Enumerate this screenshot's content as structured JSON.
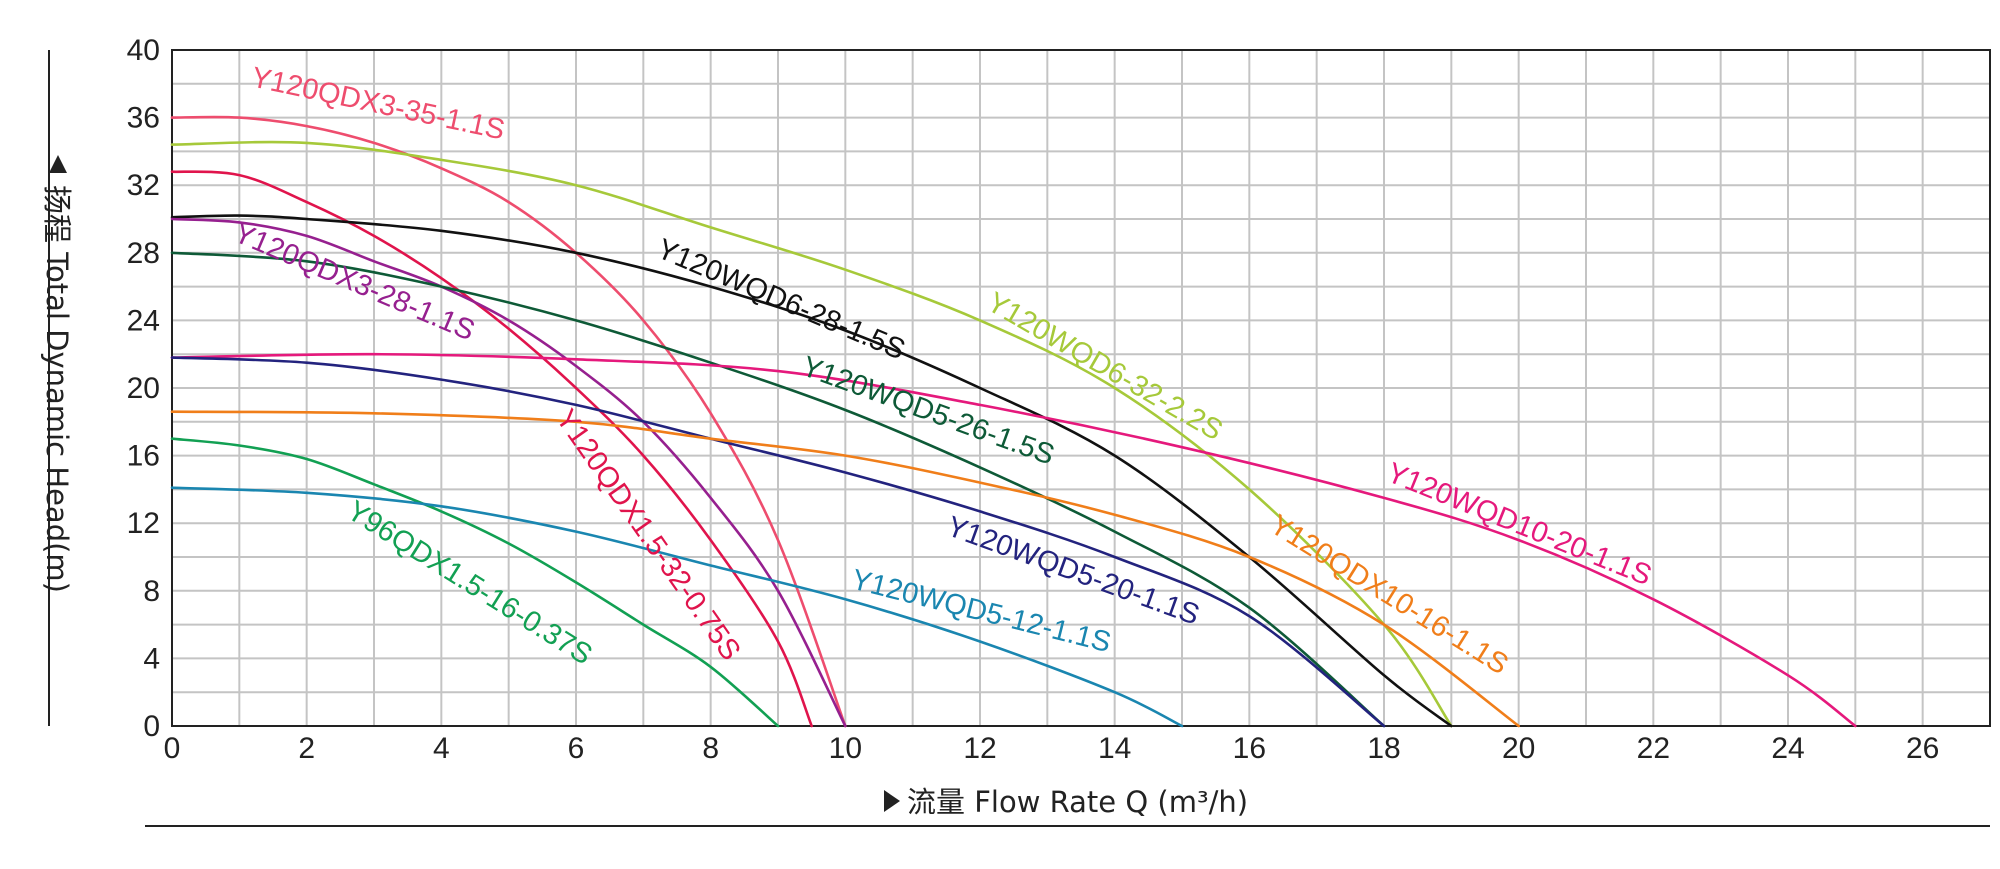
{
  "chart_data": {
    "type": "line",
    "xlabel": "流量 Flow Rate Q (m³/h)",
    "ylabel": "扬程 Total Dynamic Head(m)",
    "xlim": [
      0,
      27
    ],
    "ylim": [
      0,
      40
    ],
    "x_ticks": [
      "0",
      "2",
      "4",
      "6",
      "8",
      "10",
      "12",
      "14",
      "16",
      "18",
      "20",
      "22",
      "24",
      "26"
    ],
    "y_ticks": [
      "0",
      "4",
      "8",
      "12",
      "16",
      "20",
      "24",
      "28",
      "32",
      "36",
      "40"
    ],
    "grid": true,
    "series": [
      {
        "name": "Y120QDX3-35-1.1S",
        "color": "#ee4d6e",
        "points": [
          [
            0,
            36
          ],
          [
            1,
            36
          ],
          [
            2,
            35.5
          ],
          [
            3,
            34.5
          ],
          [
            4,
            33
          ],
          [
            5,
            31
          ],
          [
            6,
            28
          ],
          [
            7,
            24
          ],
          [
            8,
            18.5
          ],
          [
            9,
            11
          ],
          [
            10,
            0
          ]
        ]
      },
      {
        "name": "Y120WQD6-32-2.2S",
        "color": "#a6c93a",
        "points": [
          [
            0,
            34.4
          ],
          [
            2,
            34.5
          ],
          [
            4,
            33.5
          ],
          [
            6,
            32
          ],
          [
            8,
            29.5
          ],
          [
            10,
            27
          ],
          [
            12,
            24
          ],
          [
            14,
            20
          ],
          [
            16,
            14
          ],
          [
            18,
            6
          ],
          [
            19,
            0
          ]
        ]
      },
      {
        "name": "Y120QDX1.5-32-0.75S",
        "color": "#e0144c",
        "points": [
          [
            0,
            32.8
          ],
          [
            1,
            32.6
          ],
          [
            2,
            31
          ],
          [
            3,
            29
          ],
          [
            4,
            26.5
          ],
          [
            5,
            23.5
          ],
          [
            6,
            20
          ],
          [
            7,
            16
          ],
          [
            8,
            11
          ],
          [
            9,
            5
          ],
          [
            9.5,
            0
          ]
        ]
      },
      {
        "name": "Y120WQD6-28-1.5S",
        "color": "#111111",
        "points": [
          [
            0,
            30.1
          ],
          [
            1,
            30.2
          ],
          [
            2,
            30
          ],
          [
            4,
            29.3
          ],
          [
            6,
            28
          ],
          [
            8,
            26
          ],
          [
            10,
            23.4
          ],
          [
            12,
            20
          ],
          [
            14,
            16
          ],
          [
            16,
            10
          ],
          [
            18,
            3
          ],
          [
            19,
            0
          ]
        ]
      },
      {
        "name": "Y120QDX3-28-1.1S",
        "color": "#96208f",
        "points": [
          [
            0,
            30
          ],
          [
            1,
            29.8
          ],
          [
            2,
            29
          ],
          [
            3,
            27.5
          ],
          [
            4,
            26
          ],
          [
            5,
            24
          ],
          [
            6,
            21.3
          ],
          [
            7,
            18
          ],
          [
            8,
            13.5
          ],
          [
            9,
            8
          ],
          [
            10,
            0
          ]
        ]
      },
      {
        "name": "Y120WQD5-26-1.5S",
        "color": "#0e5a37",
        "points": [
          [
            0,
            28
          ],
          [
            2,
            27.5
          ],
          [
            4,
            26
          ],
          [
            6,
            24
          ],
          [
            8,
            21.5
          ],
          [
            10,
            18.7
          ],
          [
            12,
            15.3
          ],
          [
            14,
            11.5
          ],
          [
            16,
            7
          ],
          [
            18,
            0
          ]
        ]
      },
      {
        "name": "Y120WQD10-20-1.1S",
        "color": "#e5197c",
        "points": [
          [
            0,
            21.8
          ],
          [
            3,
            22
          ],
          [
            6,
            21.7
          ],
          [
            9,
            21
          ],
          [
            12,
            19
          ],
          [
            15,
            16.5
          ],
          [
            18,
            13.5
          ],
          [
            20,
            11
          ],
          [
            22,
            7.5
          ],
          [
            24,
            3
          ],
          [
            25,
            0
          ]
        ]
      },
      {
        "name": "Y120WQD5-20-1.1S",
        "color": "#23237e",
        "points": [
          [
            0,
            21.8
          ],
          [
            2,
            21.5
          ],
          [
            4,
            20.5
          ],
          [
            6,
            19
          ],
          [
            8,
            17
          ],
          [
            10,
            15
          ],
          [
            12,
            12.7
          ],
          [
            14,
            10
          ],
          [
            16,
            6.5
          ],
          [
            18,
            0
          ]
        ]
      },
      {
        "name": "Y120QDX10-16-1.1S",
        "color": "#f07e1a",
        "points": [
          [
            0,
            18.6
          ],
          [
            3,
            18.5
          ],
          [
            6,
            18
          ],
          [
            8,
            17
          ],
          [
            10,
            16
          ],
          [
            12,
            14.4
          ],
          [
            14,
            12.5
          ],
          [
            16,
            10
          ],
          [
            18,
            6
          ],
          [
            20,
            0
          ]
        ]
      },
      {
        "name": "Y96QDX1.5-16-0.37S",
        "color": "#12a053",
        "points": [
          [
            0,
            17
          ],
          [
            1,
            16.6
          ],
          [
            2,
            15.8
          ],
          [
            3,
            14.3
          ],
          [
            4,
            12.7
          ],
          [
            5,
            10.8
          ],
          [
            6,
            8.5
          ],
          [
            7,
            6
          ],
          [
            8,
            3.5
          ],
          [
            9,
            0
          ]
        ]
      },
      {
        "name": "Y120WQD5-12-1.1S",
        "color": "#1a86b0",
        "points": [
          [
            0,
            14.1
          ],
          [
            2,
            13.8
          ],
          [
            4,
            13
          ],
          [
            6,
            11.5
          ],
          [
            8,
            9.5
          ],
          [
            10,
            7.5
          ],
          [
            12,
            5
          ],
          [
            14,
            2
          ],
          [
            15,
            0
          ]
        ]
      }
    ]
  }
}
